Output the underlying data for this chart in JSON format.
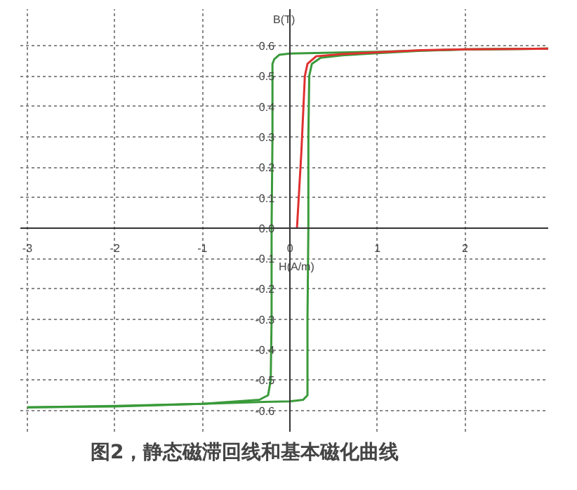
{
  "chart_data": {
    "type": "line",
    "title": "图2，静态磁滞回线和基本磁化曲线",
    "xlabel": "H(A/m)",
    "ylabel": "B(T)",
    "xlim": [
      -3.08,
      2.95
    ],
    "ylim": [
      -0.67,
      0.72
    ],
    "xticks": [
      -3,
      -2,
      -1,
      0,
      1,
      2
    ],
    "yticks": [
      -0.6,
      -0.5,
      -0.4,
      -0.3,
      -0.2,
      -0.1,
      {
        "value": 0,
        "label": "0.0"
      },
      0.1,
      0.2,
      0.3,
      0.4,
      0.5,
      0.6
    ],
    "grid": true,
    "line_style": "solid",
    "marker": "none",
    "series": [
      {
        "color": "#3a9a3a",
        "x": [
          -3,
          -2,
          -1,
          -0.3,
          0,
          0.15,
          0.2,
          0.2,
          0.21,
          0.21,
          0.22,
          0.25,
          0.35,
          0.6,
          1,
          1.5,
          2,
          2.95
        ],
        "values": [
          -0.59,
          -0.585,
          -0.578,
          -0.572,
          -0.57,
          -0.565,
          -0.55,
          -0.3,
          0,
          0.3,
          0.5,
          0.54,
          0.56,
          0.568,
          0.575,
          0.583,
          0.587,
          0.59
        ]
      },
      {
        "color": "#3a9a3a",
        "x": [
          -3,
          -2,
          -1,
          -0.35,
          -0.25,
          -0.22,
          -0.21,
          -0.21,
          -0.2,
          -0.2,
          -0.18,
          -0.12,
          0,
          1,
          2,
          2.95
        ],
        "values": [
          -0.59,
          -0.587,
          -0.578,
          -0.565,
          -0.55,
          -0.5,
          -0.3,
          0,
          0.3,
          0.54,
          0.555,
          0.57,
          0.574,
          0.58,
          0.588,
          0.59
        ]
      },
      {
        "color": "#e03030",
        "x": [
          0.08,
          0.13,
          0.17,
          0.2,
          0.3,
          0.6,
          1,
          1.5,
          2,
          2.95
        ],
        "values": [
          0,
          0.25,
          0.5,
          0.54,
          0.565,
          0.572,
          0.578,
          0.585,
          0.588,
          0.59
        ]
      }
    ]
  }
}
